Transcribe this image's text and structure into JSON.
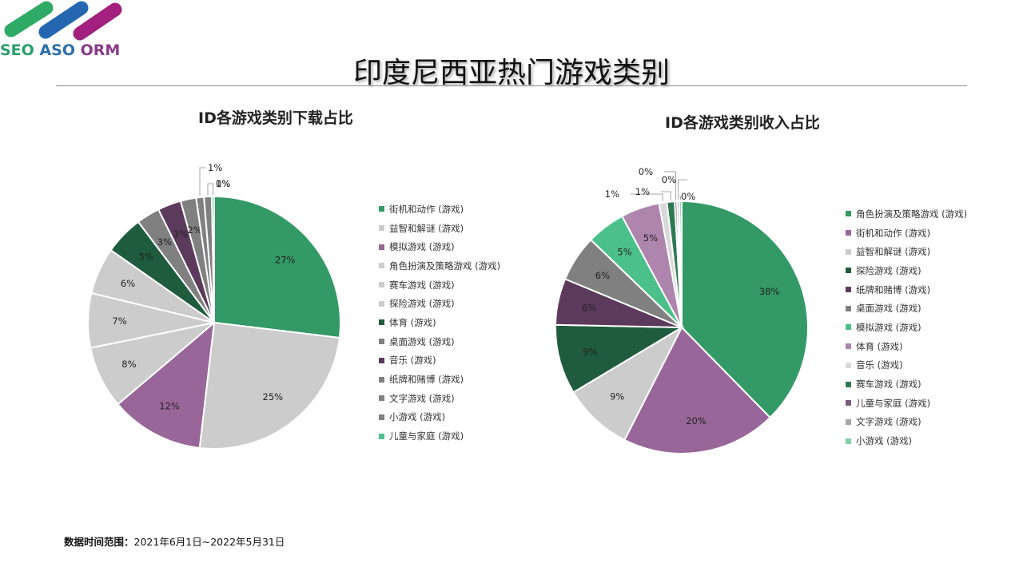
{
  "logo": {
    "text_seo": "SEO",
    "text_aso": "ASO",
    "text_orm": "ORM",
    "stripe_colors": [
      "#2eaa64",
      "#2467b0",
      "#a3207e"
    ]
  },
  "page": {
    "title": "印度尼西亚热门游戏类别"
  },
  "footer": {
    "label": "数据时间范围：",
    "value": "2021年6月1日~2022年5月31日"
  },
  "chart_data": [
    {
      "type": "pie",
      "title": "ID各游戏类别下载占比",
      "legend_position": "right",
      "categories": [
        "街机和动作 (游戏)",
        "益智和解谜 (游戏)",
        "模拟游戏 (游戏)",
        "角色扮演及策略游戏 (游戏)",
        "赛车游戏 (游戏)",
        "探险游戏 (游戏)",
        "体育 (游戏)",
        "桌面游戏 (游戏)",
        "音乐 (游戏)",
        "纸牌和赌博 (游戏)",
        "文字游戏 (游戏)",
        "小游戏 (游戏)",
        "儿童与家庭 (游戏)"
      ],
      "values": [
        27,
        25,
        12,
        8,
        7,
        6,
        5,
        3,
        3,
        2,
        1,
        1,
        0.3
      ],
      "labels": [
        "27%",
        "25%",
        "12%",
        "8%",
        "7%",
        "6%",
        "5%",
        "3%",
        "3%",
        "2%",
        "1%",
        "1%",
        "0%"
      ],
      "colors": [
        "#339966",
        "#cccccc",
        "#996699",
        "#cccccc",
        "#cccccc",
        "#cccccc",
        "#1f5c3d",
        "#808080",
        "#5c3a5c",
        "#808080",
        "#808080",
        "#808080",
        "#4cc08a"
      ]
    },
    {
      "type": "pie",
      "title": "ID各游戏类别收入占比",
      "legend_position": "right",
      "categories": [
        "角色扮演及策略游戏 (游戏)",
        "街机和动作 (游戏)",
        "益智和解谜 (游戏)",
        "探险游戏 (游戏)",
        "纸牌和赌博 (游戏)",
        "桌面游戏 (游戏)",
        "模拟游戏 (游戏)",
        "体育 (游戏)",
        "音乐 (游戏)",
        "赛车游戏 (游戏)",
        "儿童与家庭 (游戏)",
        "文字游戏 (游戏)",
        "小游戏 (游戏)"
      ],
      "values": [
        38,
        20,
        9,
        9,
        6,
        6,
        5,
        5,
        1,
        1,
        0.3,
        0.3,
        0.3
      ],
      "labels": [
        "38%",
        "20%",
        "9%",
        "9%",
        "6%",
        "6%",
        "5%",
        "5%",
        "1%",
        "1%",
        "0%",
        "0%",
        "0%"
      ],
      "colors": [
        "#339966",
        "#996699",
        "#cccccc",
        "#1f5c3d",
        "#5c3a5c",
        "#808080",
        "#4cc08a",
        "#ad85ad",
        "#d9d9d9",
        "#2d7a52",
        "#7a5a7a",
        "#a6a6a6",
        "#7fd1a8"
      ]
    }
  ]
}
